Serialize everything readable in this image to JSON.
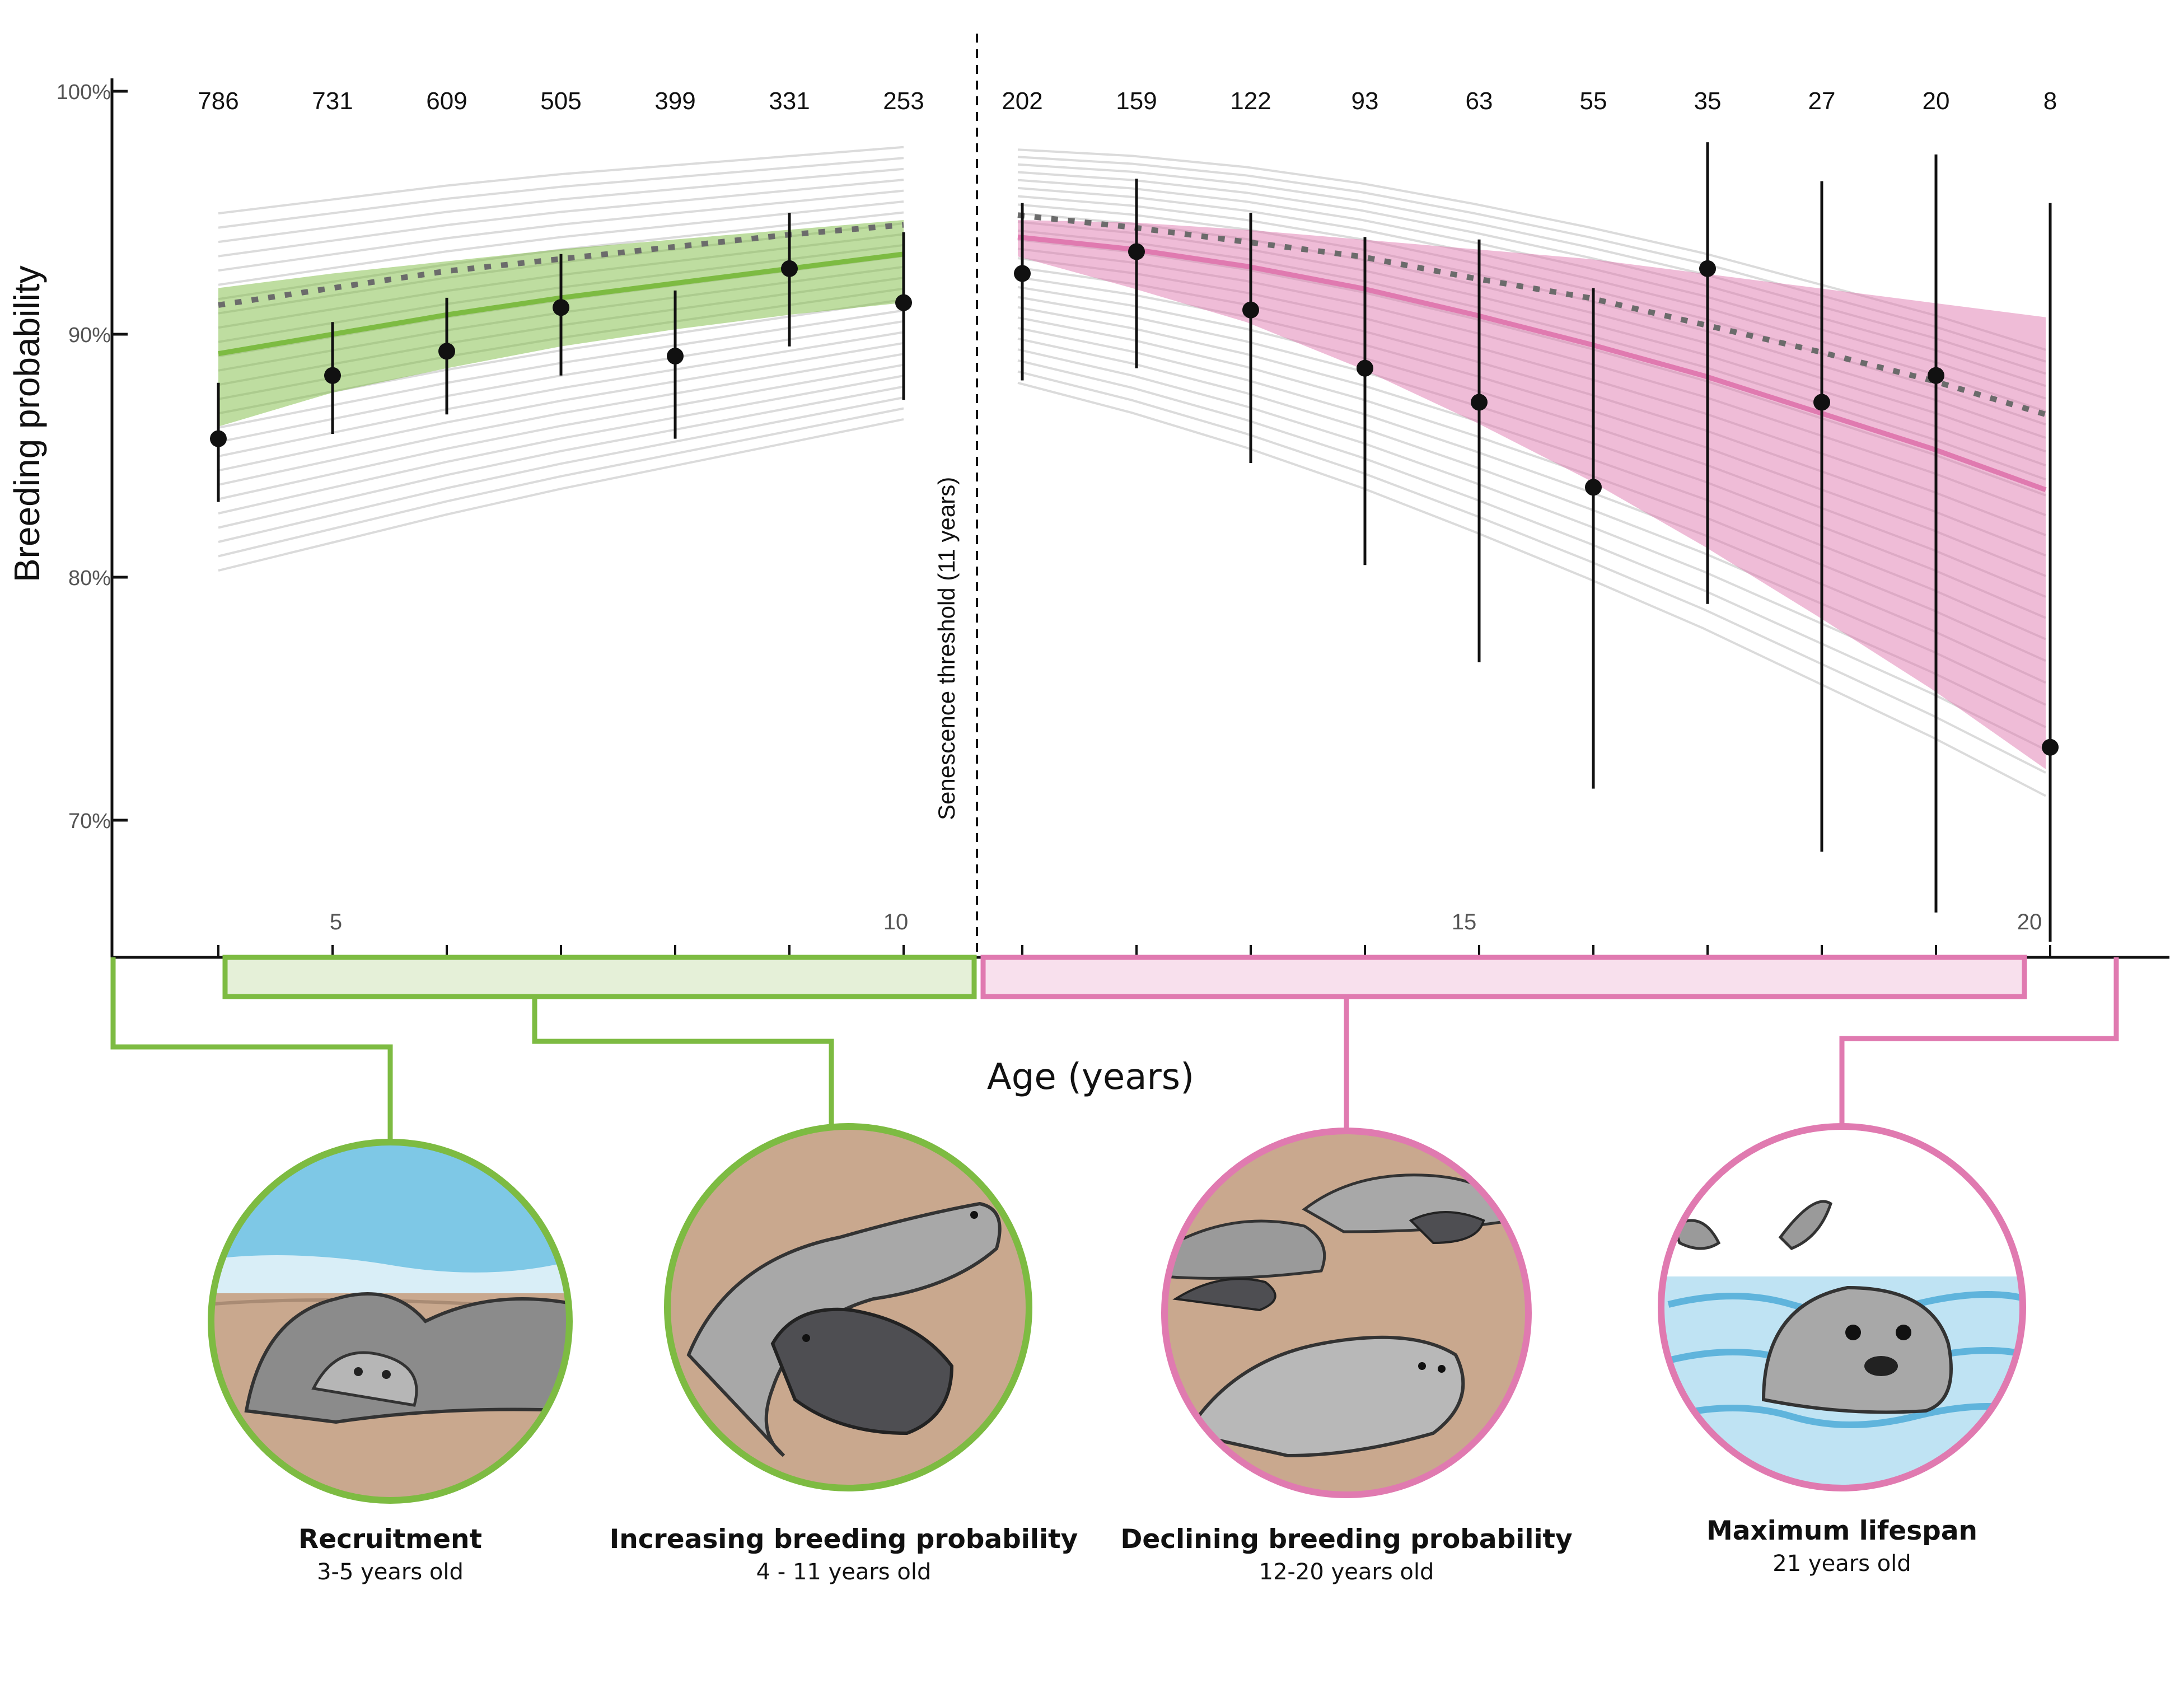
{
  "chart_data": {
    "type": "line",
    "xlabel": "Age (years)",
    "ylabel": "Breeding probability",
    "x_ticks": [
      5,
      10,
      15,
      20
    ],
    "y_ticks": [
      "70%",
      "80%",
      "90%",
      "100%"
    ],
    "x_range": [
      0,
      21.5
    ],
    "y_range": [
      64.5,
      100
    ],
    "threshold": {
      "x": 11,
      "label": "Senescence threshold (11 years)"
    },
    "sample_sizes": {
      "ages": [
        4,
        5,
        6,
        7,
        8,
        9,
        10,
        11,
        12,
        13,
        14,
        15,
        16,
        17,
        18,
        19,
        20
      ],
      "values": [
        "786",
        "731",
        "609",
        "505",
        "399",
        "331",
        "253",
        "202",
        "159",
        "122",
        "93",
        "63",
        "55",
        "35",
        "27",
        "20",
        "8"
      ]
    },
    "observed": {
      "x": [
        4,
        5,
        6,
        7,
        8,
        9,
        10,
        11,
        12,
        13,
        14,
        15,
        16,
        17,
        18,
        19,
        20
      ],
      "y": [
        85.7,
        88.3,
        89.3,
        91.1,
        89.1,
        92.7,
        91.3,
        92.5,
        93.4,
        91.0,
        88.6,
        87.2,
        83.7,
        92.7,
        87.2,
        88.3,
        73.0
      ],
      "lower": [
        83.1,
        85.9,
        86.7,
        88.3,
        85.7,
        89.5,
        87.3,
        88.1,
        88.6,
        84.7,
        80.5,
        76.5,
        71.3,
        78.9,
        68.7,
        66.2,
        65.0
      ],
      "upper": [
        88.0,
        90.5,
        91.5,
        93.3,
        91.8,
        95.0,
        94.2,
        95.4,
        96.4,
        95.0,
        94.0,
        93.9,
        91.9,
        97.9,
        96.3,
        97.4,
        95.4
      ]
    },
    "series": [
      {
        "name": "",
        "color": "#7dbb42",
        "x": [
          4,
          5,
          6,
          7,
          8,
          9,
          10
        ],
        "mean": [
          89.2,
          90.0,
          90.8,
          91.5,
          92.1,
          92.7,
          93.3
        ],
        "lower": [
          86.2,
          87.6,
          88.6,
          89.5,
          90.2,
          90.8,
          91.3
        ],
        "upper": [
          91.9,
          92.5,
          93.0,
          93.5,
          93.9,
          94.3,
          94.7
        ],
        "dotted": [
          91.2,
          91.9,
          92.6,
          93.1,
          93.6,
          94.1,
          94.5
        ]
      },
      {
        "name": "",
        "color": "#e07ab0",
        "x": [
          11,
          12,
          13,
          14,
          15,
          16,
          17,
          18,
          19,
          20
        ],
        "mean": [
          94.0,
          93.5,
          92.8,
          91.9,
          90.8,
          89.6,
          88.3,
          86.8,
          85.3,
          83.6
        ],
        "lower": [
          93.2,
          91.9,
          90.5,
          88.6,
          86.4,
          84.0,
          81.3,
          78.4,
          75.4,
          72.1
        ],
        "upper": [
          94.7,
          94.6,
          94.3,
          93.9,
          93.5,
          93.1,
          92.5,
          91.9,
          91.3,
          90.7
        ],
        "dotted": [
          94.9,
          94.4,
          93.8,
          93.2,
          92.3,
          91.5,
          90.4,
          89.3,
          88.1,
          86.7
        ]
      }
    ]
  },
  "stages": [
    {
      "title": "Recruitment",
      "subtitle": "3-5 years old",
      "color": "#7dbb42",
      "icon": "mother-and-pup-on-beach"
    },
    {
      "title": "Increasing breeding probability",
      "subtitle": "4 - 11 years old",
      "color": "#7dbb42",
      "icon": "mother-nursing-pup"
    },
    {
      "title": "Declining breeding probability",
      "subtitle": "12-20 years old",
      "color": "#e07ab0",
      "icon": "older-seals-on-beach"
    },
    {
      "title": "Maximum lifespan",
      "subtitle": "21 years old",
      "color": "#e07ab0",
      "icon": "seal-in-water"
    }
  ]
}
